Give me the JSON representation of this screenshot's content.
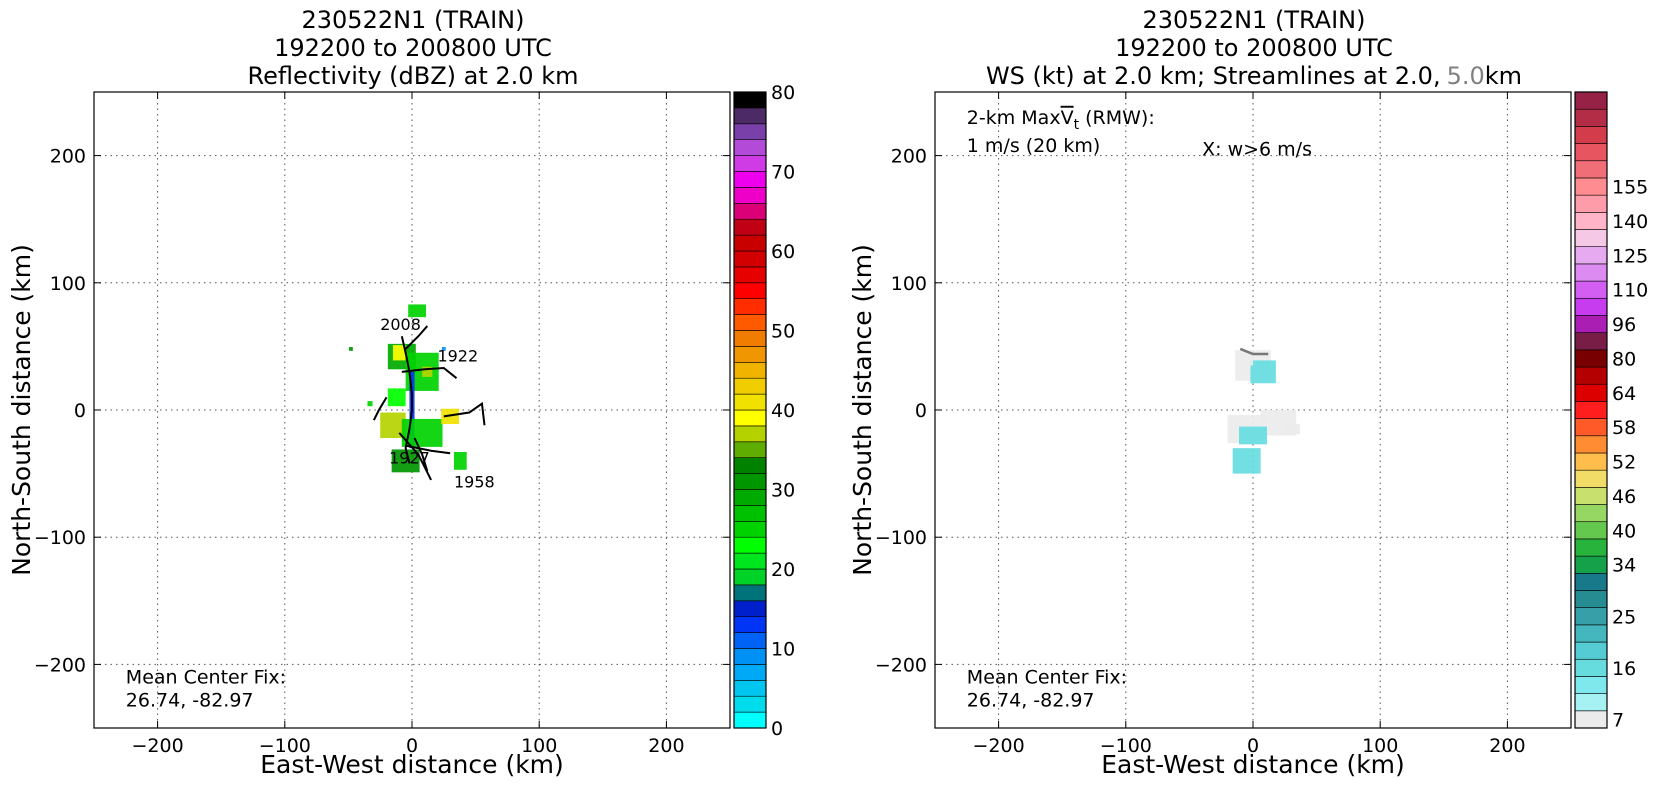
{
  "chart_data": [
    {
      "type": "heatmap",
      "title": [
        "230522N1 (TRAIN)",
        "192200 to 200800 UTC",
        "Reflectivity (dBZ) at 2.0 km"
      ],
      "xlabel": "East-West distance (km)",
      "ylabel": "North-South distance (km)",
      "xlim": [
        -250,
        250
      ],
      "ylim": [
        -250,
        250
      ],
      "xticks": [
        -200,
        -100,
        0,
        100,
        200
      ],
      "yticks": [
        -200,
        -100,
        0,
        100,
        200
      ],
      "x_tick_labels": [
        "−200",
        "−100",
        "0",
        "100",
        "200"
      ],
      "y_tick_labels": [
        "−200",
        "−100",
        "0",
        "100",
        "200"
      ],
      "grid": true,
      "annotations": [
        {
          "text": "2008",
          "x": -25,
          "y": 63
        },
        {
          "text": "1922",
          "x": 20,
          "y": 38
        },
        {
          "text": "1927",
          "x": -18,
          "y": -42
        },
        {
          "text": "1958",
          "x": 33,
          "y": -61
        },
        {
          "text": "Mean Center Fix:",
          "x": -225,
          "y": -215
        },
        {
          "text": "26.74, -82.97",
          "x": -225,
          "y": -233
        }
      ],
      "flight_tracks": [
        [
          [
            -8,
            58
          ],
          [
            -5,
            45
          ],
          [
            -2,
            30
          ],
          [
            0,
            12
          ],
          [
            0,
            0
          ],
          [
            -2,
            -15
          ],
          [
            -5,
            -30
          ],
          [
            -2,
            -42
          ]
        ],
        [
          [
            -5,
            48
          ],
          [
            5,
            58
          ],
          [
            12,
            66
          ]
        ],
        [
          [
            -8,
            30
          ],
          [
            10,
            32
          ],
          [
            25,
            33
          ],
          [
            35,
            25
          ]
        ],
        [
          [
            -20,
            10
          ],
          [
            -26,
            0
          ],
          [
            -30,
            -8
          ]
        ],
        [
          [
            -5,
            -28
          ],
          [
            15,
            -32
          ],
          [
            30,
            -34
          ]
        ],
        [
          [
            -10,
            -18
          ],
          [
            5,
            -35
          ],
          [
            15,
            -55
          ]
        ],
        [
          [
            25,
            -5
          ],
          [
            45,
            -2
          ],
          [
            55,
            5
          ],
          [
            57,
            -12
          ]
        ],
        [
          [
            2,
            -22
          ],
          [
            8,
            -35
          ],
          [
            12,
            -48
          ]
        ]
      ],
      "echo_cells": [
        {
          "x": 4,
          "y": 78,
          "w": 14,
          "h": 10,
          "dbz": 25
        },
        {
          "x": -8,
          "y": 42,
          "w": 22,
          "h": 20,
          "dbz": 28
        },
        {
          "x": -10,
          "y": 45,
          "w": 10,
          "h": 12,
          "dbz": 38
        },
        {
          "x": 8,
          "y": 30,
          "w": 26,
          "h": 30,
          "dbz": 24
        },
        {
          "x": 12,
          "y": 30,
          "w": 8,
          "h": 8,
          "dbz": 36
        },
        {
          "x": -12,
          "y": 10,
          "w": 14,
          "h": 14,
          "dbz": 22
        },
        {
          "x": 0,
          "y": 0,
          "w": 4,
          "h": 60,
          "dbz": 12
        },
        {
          "x": -15,
          "y": -12,
          "w": 20,
          "h": 20,
          "dbz": 36
        },
        {
          "x": 8,
          "y": -18,
          "w": 32,
          "h": 22,
          "dbz": 24
        },
        {
          "x": 30,
          "y": -5,
          "w": 14,
          "h": 12,
          "dbz": 40
        },
        {
          "x": -5,
          "y": -40,
          "w": 22,
          "h": 18,
          "dbz": 30
        },
        {
          "x": 38,
          "y": -40,
          "w": 10,
          "h": 14,
          "dbz": 25
        },
        {
          "x": -48,
          "y": 48,
          "w": 3,
          "h": 3,
          "dbz": 30
        },
        {
          "x": -33,
          "y": 5,
          "w": 4,
          "h": 4,
          "dbz": 25
        },
        {
          "x": 25,
          "y": 48,
          "w": 3,
          "h": 3,
          "dbz": 8
        }
      ],
      "colorbar": {
        "ticks": [
          0,
          10,
          20,
          30,
          40,
          50,
          60,
          70,
          80
        ],
        "colors": [
          "#00ffff",
          "#00dcec",
          "#00c6f0",
          "#00a9f5",
          "#0091f5",
          "#0063f5",
          "#0035f5",
          "#0020cc",
          "#00727a",
          "#00d228",
          "#00e61e",
          "#00ff00",
          "#00d200",
          "#00c100",
          "#00aa00",
          "#009600",
          "#008200",
          "#5fad00",
          "#b4d200",
          "#ffff00",
          "#f0e100",
          "#f0cd00",
          "#f0b400",
          "#f09600",
          "#f07d00",
          "#ff5a00",
          "#ff2d00",
          "#ff0000",
          "#e60000",
          "#d20000",
          "#c80000",
          "#c00014",
          "#dc0078",
          "#ee00c8",
          "#ee00ee",
          "#cf3ce5",
          "#b44ad8",
          "#7840a8",
          "#4b2a66",
          "#000000"
        ]
      }
    },
    {
      "type": "heatmap",
      "title": [
        "230522N1 (TRAIN)",
        "192200 to 200800 UTC"
      ],
      "title_line3_main": "WS (kt) at 2.0 km; Streamlines at 2.0,",
      "title_line3_gray": "5.0",
      "title_line3_end": "km",
      "xlabel": "East-West distance (km)",
      "ylabel": "North-South distance (km)",
      "xlim": [
        -250,
        250
      ],
      "ylim": [
        -250,
        250
      ],
      "xticks": [
        -200,
        -100,
        0,
        100,
        200
      ],
      "yticks": [
        -200,
        -100,
        0,
        100,
        200
      ],
      "x_tick_labels": [
        "−200",
        "−100",
        "0",
        "100",
        "200"
      ],
      "y_tick_labels": [
        "−200",
        "−100",
        "0",
        "100",
        "200"
      ],
      "grid": true,
      "annotations": [
        {
          "text_pre": "2-km Max",
          "text_v": "V",
          "text_sub": "t",
          "text_post": " (RMW):",
          "x": -225,
          "y": 225
        },
        {
          "text": "1 m/s (20 km)",
          "x": -225,
          "y": 203
        },
        {
          "text": "X: w>6 m/s",
          "x": -40,
          "y": 200
        },
        {
          "text": "Mean Center Fix:",
          "x": -225,
          "y": -215
        },
        {
          "text": "26.74, -82.97",
          "x": -225,
          "y": -233
        }
      ],
      "streamline": [
        [
          -10,
          48
        ],
        [
          0,
          44
        ],
        [
          12,
          44
        ]
      ],
      "wind_cells": [
        {
          "x": 0,
          "y": 35,
          "w": 28,
          "h": 24,
          "kt": 7
        },
        {
          "x": 8,
          "y": 30,
          "w": 20,
          "h": 18,
          "kt": 16
        },
        {
          "x": -5,
          "y": 40,
          "w": 10,
          "h": 10,
          "kt": 13
        },
        {
          "x": -5,
          "y": -15,
          "w": 30,
          "h": 22,
          "kt": 7
        },
        {
          "x": 20,
          "y": -10,
          "w": 28,
          "h": 20,
          "kt": 7
        },
        {
          "x": 0,
          "y": -20,
          "w": 22,
          "h": 14,
          "kt": 16
        },
        {
          "x": -5,
          "y": -40,
          "w": 22,
          "h": 20,
          "kt": 16
        },
        {
          "x": 30,
          "y": -15,
          "w": 14,
          "h": 8,
          "kt": 13
        }
      ],
      "colorbar": {
        "ticks": [
          7,
          16,
          25,
          34,
          40,
          46,
          52,
          58,
          64,
          80,
          96,
          110,
          125,
          140,
          155
        ],
        "tick_positions": [
          0,
          3,
          6,
          9,
          11,
          13,
          15,
          17,
          19,
          21,
          23,
          25,
          27,
          29,
          31
        ],
        "colors": [
          "#ebebeb",
          "#a6f2f2",
          "#7ee8ec",
          "#66dcdf",
          "#55ccd3",
          "#43b7bd",
          "#369fa7",
          "#268c92",
          "#18798a",
          "#15a04a",
          "#28b43c",
          "#64c84e",
          "#96d764",
          "#c8e06e",
          "#f0dc66",
          "#ffbe4b",
          "#ff8c32",
          "#ff5a28",
          "#ff1e1e",
          "#dc0000",
          "#b40000",
          "#780000",
          "#781e46",
          "#aa1eb4",
          "#c83cf0",
          "#d25ef2",
          "#dc8cf0",
          "#e6aaf0",
          "#f5c8e6",
          "#ffb4c8",
          "#ff9caa",
          "#ff8c91",
          "#f06e78",
          "#e65560",
          "#d23c4b",
          "#b42d46",
          "#962346"
        ]
      }
    }
  ]
}
